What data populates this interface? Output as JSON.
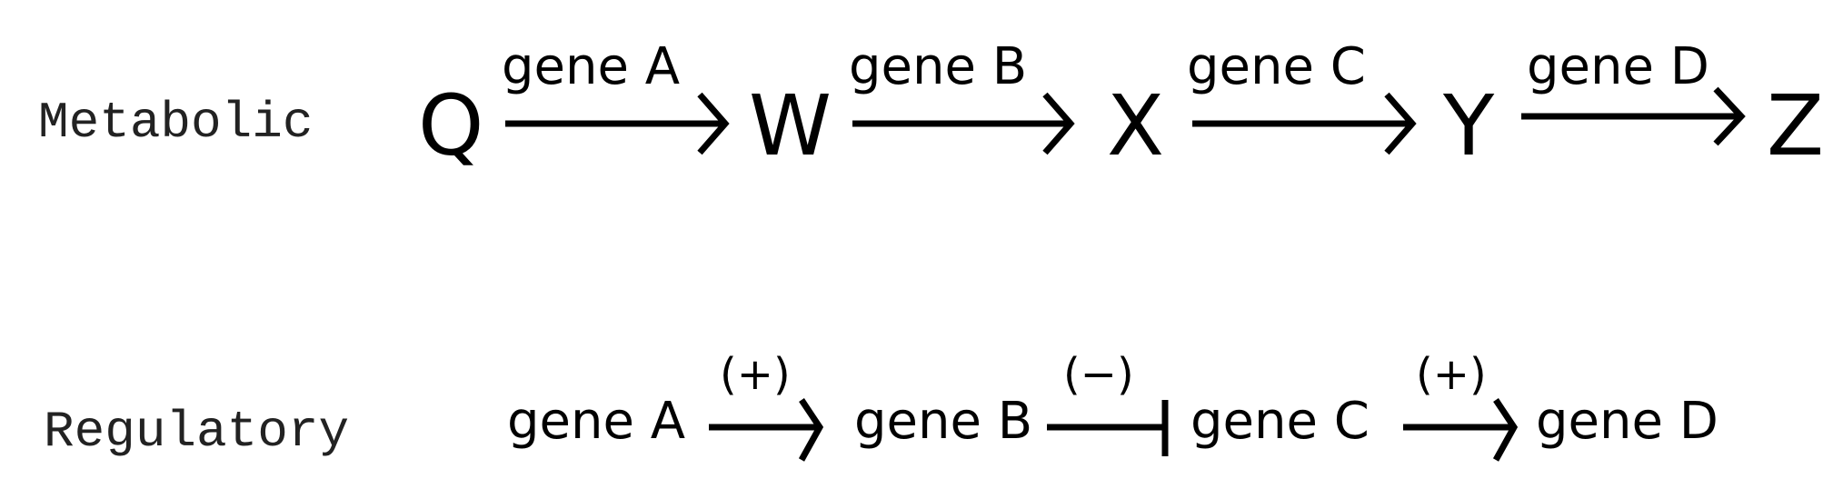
{
  "metabolic": {
    "label": "Metabolic",
    "nodes": [
      "Q",
      "W",
      "X",
      "Y",
      "Z"
    ],
    "edges": [
      {
        "label": "gene A",
        "type": "arrow"
      },
      {
        "label": "gene B",
        "type": "arrow"
      },
      {
        "label": "gene C",
        "type": "arrow"
      },
      {
        "label": "gene D",
        "type": "arrow"
      }
    ]
  },
  "regulatory": {
    "label": "Regulatory",
    "nodes": [
      "gene A",
      "gene B",
      "gene C",
      "gene D"
    ],
    "edges": [
      {
        "sign": "(+)",
        "type": "activation"
      },
      {
        "sign": "(−)",
        "type": "inhibition"
      },
      {
        "sign": "(+)",
        "type": "activation"
      }
    ]
  },
  "colors": {
    "ink": "#000000",
    "label": "#222222",
    "background": "#ffffff"
  }
}
